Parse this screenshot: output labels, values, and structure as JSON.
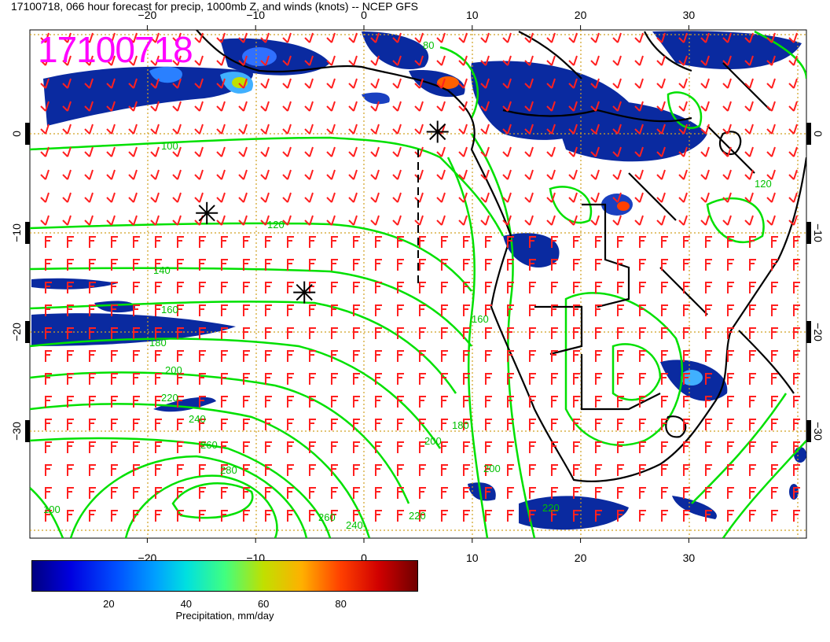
{
  "header": {
    "title": "17100718, 066 hour forecast for precip, 1000mb Z, and winds (knots) -- NCEP GFS"
  },
  "stamp": "17100718",
  "map": {
    "lon_ticks": [
      "−20",
      "−10",
      "0",
      "10",
      "20",
      "30"
    ],
    "lat_ticks": [
      "0",
      "−10",
      "−20",
      "−30"
    ],
    "lon_values": [
      -20,
      -10,
      0,
      10,
      20,
      30
    ],
    "lat_values": [
      0,
      -10,
      -20,
      -30
    ],
    "contour_labels": [
      "100",
      "120",
      "140",
      "160",
      "180",
      "200",
      "220",
      "240",
      "260",
      "280",
      "260",
      "240",
      "220",
      "200",
      "180",
      "160",
      "120",
      "100",
      "200",
      "220",
      "80"
    ],
    "markers": [
      {
        "lon": 6.8,
        "lat": 0.2
      },
      {
        "lon": -14.5,
        "lat": -8.0
      },
      {
        "lon": -5.5,
        "lat": -16.0
      }
    ],
    "colors": {
      "land": "#000000",
      "contour": "#00e000",
      "barb": "#ff0000",
      "grid": "#d0a020",
      "stamp": "#ff00ff"
    }
  },
  "colorbar": {
    "ticks": [
      "20",
      "40",
      "60",
      "80"
    ],
    "tick_values": [
      20,
      40,
      60,
      80
    ],
    "range": [
      0,
      100
    ],
    "label": "Precipitation, mm/day"
  }
}
